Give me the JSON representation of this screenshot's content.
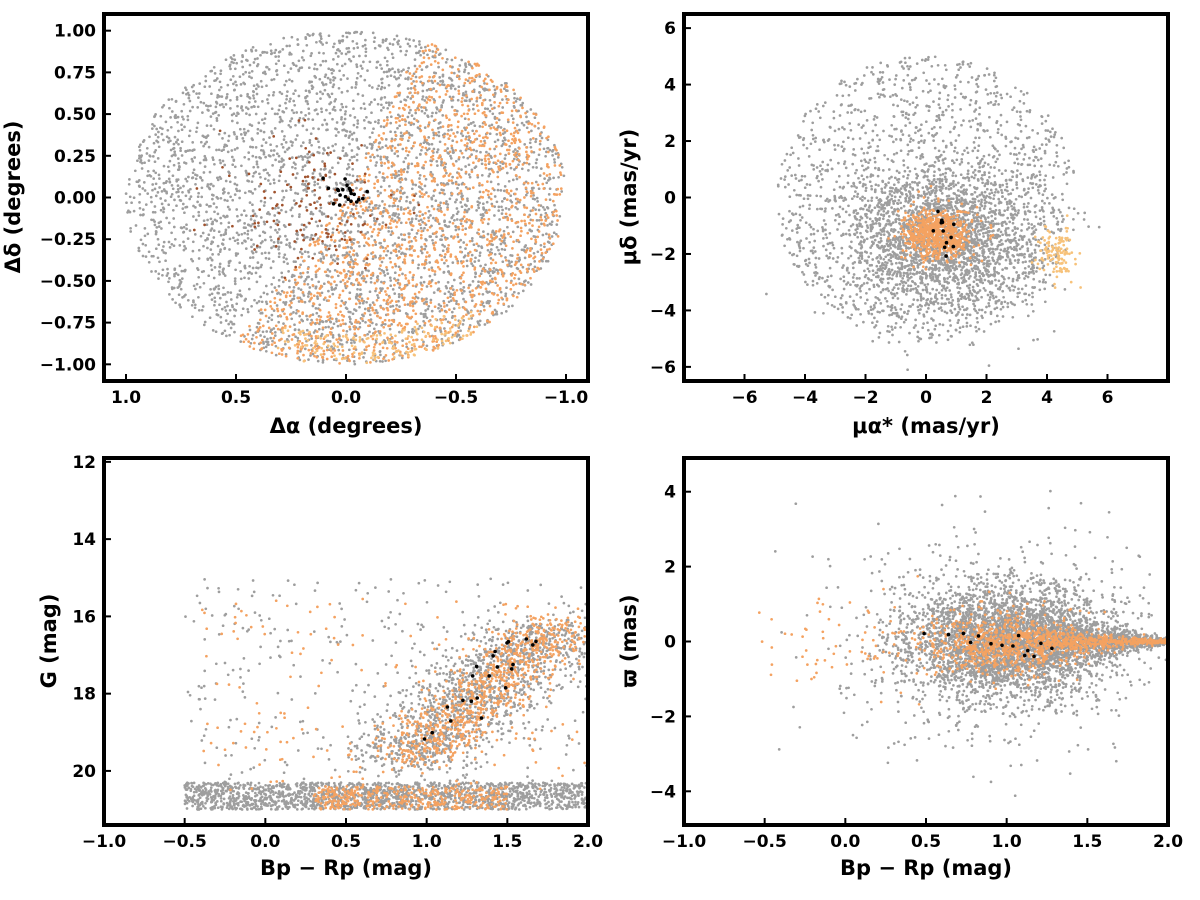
{
  "colors": {
    "background_field": "#9e9e9e",
    "orange_members": "#f4a261",
    "pale_orange": "#f7c27a",
    "brown_members": "#a0522d",
    "cluster_core": "#000000"
  },
  "chart_data": [
    {
      "id": "sky",
      "type": "scatter",
      "xlabel": "Δα (degrees)",
      "ylabel": "Δδ (degrees)",
      "xlim": [
        1.1,
        -1.1
      ],
      "ylim": [
        -1.1,
        1.1
      ],
      "x_inverted": true,
      "xticks": [
        1.0,
        0.5,
        0.0,
        -0.5,
        -1.0
      ],
      "xtick_labels": [
        "1.0",
        "0.5",
        "0.0",
        "−0.5",
        "−1.0"
      ],
      "yticks": [
        1.0,
        0.75,
        0.5,
        0.25,
        0.0,
        -0.25,
        -0.5,
        -0.75,
        -1.0
      ],
      "ytick_labels": [
        "1.00",
        "0.75",
        "0.50",
        "0.25",
        "0.00",
        "−0.25",
        "−0.50",
        "−0.75",
        "−1.00"
      ],
      "grid": false,
      "series": [
        {
          "color_key": "background_field",
          "shape": "disk",
          "center": [
            0,
            0
          ],
          "radius": 1.0,
          "n": 3600
        },
        {
          "color_key": "orange_members",
          "shape": "sector",
          "center": [
            0,
            0
          ],
          "radius": 1.0,
          "angle_from": 110,
          "angle_to": 300,
          "n": 1500
        },
        {
          "color_key": "pale_orange",
          "shape": "ring",
          "center": [
            0,
            0
          ],
          "radius": 1.0,
          "angle_from": 230,
          "angle_to": 290,
          "n": 160
        },
        {
          "color_key": "brown_members",
          "shape": "blob",
          "center": [
            0.15,
            -0.05
          ],
          "spread": [
            0.22,
            0.2
          ],
          "n": 140
        },
        {
          "color_key": "cluster_core",
          "shape": "blob",
          "center": [
            0.0,
            0.0
          ],
          "spread": [
            0.05,
            0.06
          ],
          "n": 22
        }
      ]
    },
    {
      "id": "proper-motion",
      "type": "scatter",
      "xlabel": "μα* (mas/yr)",
      "ylabel": "μδ (mas/yr)",
      "xlim": [
        -8,
        8
      ],
      "ylim": [
        -6.5,
        6.5
      ],
      "xticks": [
        -6,
        -4,
        -2,
        0,
        2,
        4,
        6
      ],
      "xtick_labels": [
        "−6",
        "−4",
        "−2",
        "0",
        "2",
        "4",
        "6"
      ],
      "yticks": [
        6,
        4,
        2,
        0,
        -2,
        -4,
        -6
      ],
      "ytick_labels": [
        "6",
        "4",
        "2",
        "0",
        "−2",
        "−4",
        "−6"
      ],
      "grid": false,
      "series": [
        {
          "color_key": "background_field",
          "shape": "disk",
          "center": [
            0,
            0
          ],
          "radius": 5.0,
          "n": 1500
        },
        {
          "color_key": "background_field",
          "shape": "blob",
          "center": [
            0.5,
            -1.5
          ],
          "spread": [
            1.6,
            1.3
          ],
          "n": 2200
        },
        {
          "color_key": "orange_members",
          "shape": "blob",
          "center": [
            0.4,
            -1.3
          ],
          "spread": [
            0.55,
            0.45
          ],
          "n": 650
        },
        {
          "color_key": "pale_orange",
          "shape": "blob",
          "center": [
            4.3,
            -1.9
          ],
          "spread": [
            0.3,
            0.45
          ],
          "n": 120
        },
        {
          "color_key": "cluster_core",
          "shape": "blob",
          "center": [
            0.5,
            -1.3
          ],
          "spread": [
            0.35,
            0.3
          ],
          "n": 12
        }
      ]
    },
    {
      "id": "cmd",
      "type": "scatter",
      "xlabel": "Bp − Rp (mag)",
      "ylabel": "G (mag)",
      "xlim": [
        -1.0,
        2.0
      ],
      "ylim": [
        21.4,
        11.9
      ],
      "y_inverted": true,
      "xticks": [
        -1.0,
        -0.5,
        0.0,
        0.5,
        1.0,
        1.5,
        2.0
      ],
      "xtick_labels": [
        "−1.0",
        "−0.5",
        "0.0",
        "0.5",
        "1.0",
        "1.5",
        "2.0"
      ],
      "yticks": [
        20,
        18,
        16,
        14,
        12
      ],
      "ytick_labels": [
        "20",
        "18",
        "16",
        "14",
        "12"
      ],
      "grid": false,
      "series": [
        {
          "color_key": "background_field",
          "shape": "band",
          "x_range": [
            -0.5,
            2.0
          ],
          "y_range": [
            20.3,
            21.0
          ],
          "n": 1700
        },
        {
          "color_key": "background_field",
          "shape": "sequence",
          "from": [
            0.85,
            19.8
          ],
          "to": [
            1.75,
            16.3
          ],
          "width": 0.22,
          "n": 1300
        },
        {
          "color_key": "background_field",
          "shape": "box",
          "x_range": [
            -0.5,
            2.0
          ],
          "y_range": [
            15.0,
            20.8
          ],
          "n": 360
        },
        {
          "color_key": "orange_members",
          "shape": "band",
          "x_range": [
            0.3,
            1.5
          ],
          "y_range": [
            20.4,
            21.0
          ],
          "n": 380
        },
        {
          "color_key": "orange_members",
          "shape": "sequence",
          "from": [
            0.9,
            19.7
          ],
          "to": [
            1.85,
            16.1
          ],
          "width": 0.15,
          "n": 800
        },
        {
          "color_key": "orange_members",
          "shape": "box",
          "x_range": [
            -0.4,
            2.0
          ],
          "y_range": [
            15.5,
            20.5
          ],
          "n": 180
        },
        {
          "color_key": "cluster_core",
          "shape": "sequence",
          "from": [
            0.95,
            19.3
          ],
          "to": [
            1.65,
            16.5
          ],
          "width": 0.08,
          "n": 22
        }
      ]
    },
    {
      "id": "parallax",
      "type": "scatter",
      "xlabel": "Bp − Rp (mag)",
      "ylabel": "ϖ (mas)",
      "xlim": [
        -1.0,
        2.0
      ],
      "ylim": [
        -4.9,
        4.9
      ],
      "xticks": [
        -1.0,
        -0.5,
        0.0,
        0.5,
        1.0,
        1.5,
        2.0
      ],
      "xtick_labels": [
        "−1.0",
        "−0.5",
        "0.0",
        "0.5",
        "1.0",
        "1.5",
        "2.0"
      ],
      "yticks": [
        4,
        2,
        0,
        -2,
        -4
      ],
      "ytick_labels": [
        "4",
        "2",
        "0",
        "−2",
        "−4"
      ],
      "grid": false,
      "series": [
        {
          "color_key": "background_field",
          "shape": "blob",
          "center": [
            1.0,
            0.0
          ],
          "spread": [
            0.32,
            0.75
          ],
          "n": 3200
        },
        {
          "color_key": "background_field",
          "shape": "blob",
          "center": [
            0.9,
            0.0
          ],
          "spread": [
            0.45,
            1.4
          ],
          "n": 700
        },
        {
          "color_key": "background_field",
          "shape": "taper",
          "x_range": [
            1.2,
            2.0
          ],
          "y_center": 0.0,
          "half_width": [
            0.8,
            0.08
          ],
          "n": 900
        },
        {
          "color_key": "orange_members",
          "shape": "blob",
          "center": [
            1.0,
            -0.05
          ],
          "spread": [
            0.22,
            0.4
          ],
          "n": 650
        },
        {
          "color_key": "orange_members",
          "shape": "taper",
          "x_range": [
            1.2,
            2.0
          ],
          "y_center": 0.0,
          "half_width": [
            0.35,
            0.04
          ],
          "n": 420
        },
        {
          "color_key": "orange_members",
          "shape": "blob",
          "center": [
            0.4,
            0.0
          ],
          "spread": [
            0.45,
            0.6
          ],
          "n": 120
        },
        {
          "color_key": "cluster_core",
          "shape": "blob",
          "center": [
            0.95,
            0.0
          ],
          "spread": [
            0.2,
            0.25
          ],
          "n": 14
        }
      ]
    }
  ]
}
